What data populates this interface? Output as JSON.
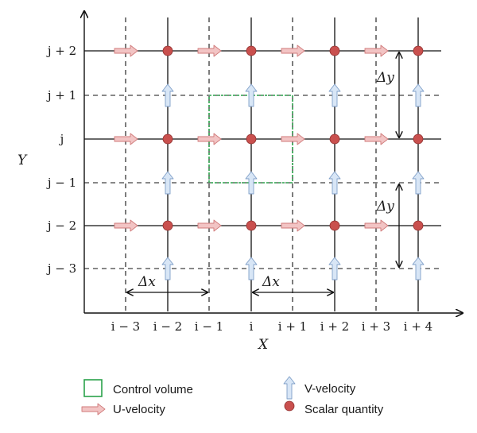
{
  "axes": {
    "x_label": "X",
    "y_label": "Y"
  },
  "x_ticks": [
    "i − 3",
    "i − 2",
    "i − 1",
    "i",
    "i + 1",
    "i + 2",
    "i + 3",
    "i + 4"
  ],
  "y_ticks": [
    "j + 2",
    "j + 1",
    "j",
    "j − 1",
    "j − 2",
    "j − 3"
  ],
  "spacing_labels": {
    "dx": "Δx",
    "dy": "Δy"
  },
  "legend": {
    "control_volume": "Control volume",
    "u_velocity": "U-velocity",
    "v_velocity": "V-velocity",
    "scalar": "Scalar quantity"
  },
  "colors": {
    "grid": "#111111",
    "control_volume": "#2aa24a",
    "u_arrow_fill": "#f2c4c4",
    "u_arrow_stroke": "#d07a7a",
    "v_arrow_fill": "#d8e6f6",
    "v_arrow_stroke": "#7f9fc8",
    "scalar_fill": "#c9504e",
    "scalar_stroke": "#8e2f2e"
  }
}
